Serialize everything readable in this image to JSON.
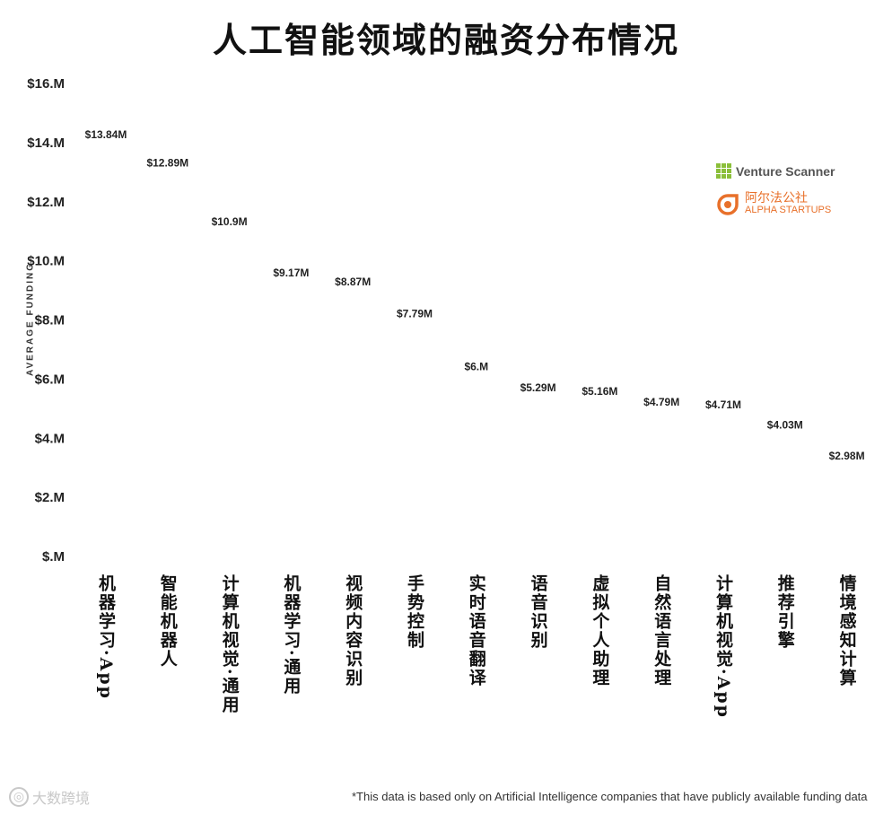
{
  "title": "人工智能领域的融资分布情况",
  "logos": {
    "venture_scanner": "Venture Scanner",
    "alpha_cn": "阿尔法公社",
    "alpha_en": "ALPHA STARTUPS"
  },
  "footnote": "*This data is based only on Artificial Intelligence companies that have publicly available funding data",
  "watermark": "大数跨境",
  "chart_data": {
    "type": "bar",
    "title": "人工智能领域的融资分布情况",
    "ylabel": "AVERAGE FUNDING",
    "xlabel": "",
    "ylim": [
      0,
      16
    ],
    "yticks": [
      0,
      2,
      4,
      6,
      8,
      10,
      12,
      14,
      16
    ],
    "ytick_labels": [
      "$.M",
      "$2.M",
      "$4.M",
      "$6.M",
      "$8.M",
      "$10.M",
      "$12.M",
      "$14.M",
      "$16.M"
    ],
    "unit_per_icon": 2,
    "grid": false,
    "categories": [
      "机器学习·App",
      "智能机器人",
      "计算机视觉·通用",
      "机器学习·通用",
      "视频内容识别",
      "手势控制",
      "实时语音翻译",
      "语音识别",
      "虚拟个人助理",
      "自然语言处理",
      "计算机视觉·App",
      "推荐引擎",
      "情境感知计算"
    ],
    "values": [
      13.84,
      12.89,
      10.9,
      9.17,
      8.87,
      7.79,
      6.0,
      5.29,
      5.16,
      4.79,
      4.71,
      4.03,
      2.98
    ],
    "value_labels": [
      "$13.84M",
      "$12.89M",
      "$10.9M",
      "$9.17M",
      "$8.87M",
      "$7.79M",
      "$6.M",
      "$5.29M",
      "$5.16M",
      "$4.79M",
      "$4.71M",
      "$4.03M",
      "$2.98M"
    ],
    "colors": {
      "robot_body": "#8c8c8c",
      "robot_dark": "#555555",
      "robot_screen": "#bfeef5",
      "robot_antenna": "#3a44c8",
      "label_text": "#222222"
    }
  }
}
